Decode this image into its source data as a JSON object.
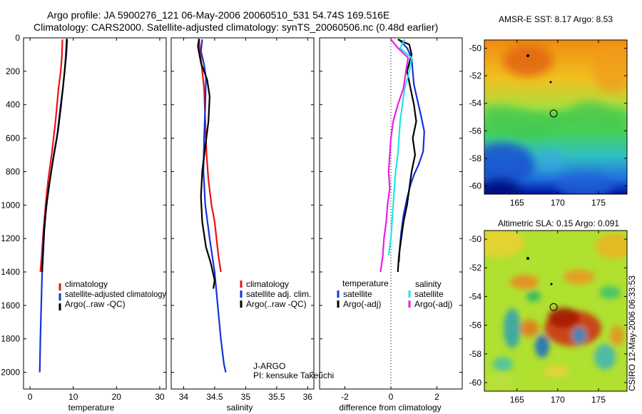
{
  "header": {
    "line1": "Argo profile: JA 5900276_121 06-May-2006 20060510_531 54.74S 169.516E",
    "line2": "Climatology: CARS2000. Satellite-adjusted climatology: synTS_20060506.nc (0.48d earlier)"
  },
  "colors": {
    "clim": "#ee1111",
    "sat": "#1133dd",
    "argo": "#000000",
    "cyan": "#22e5e5",
    "magenta": "#e81ee8"
  },
  "credit": "CSIRO 12-May-2006 06:33:53",
  "chart_data": [
    {
      "id": "temperature",
      "type": "line",
      "xlabel": "temperature",
      "ylabel": "",
      "xlim": [
        -1.5,
        31.5
      ],
      "ylim": [
        0,
        2100
      ],
      "yreverse": true,
      "xticks": [
        0,
        10,
        20,
        30
      ],
      "yticks": [
        0,
        200,
        400,
        600,
        800,
        1000,
        1200,
        1400,
        1600,
        1800,
        2000
      ],
      "legend": [
        "climatology",
        "satellite-adjusted climatology",
        "Argo(..raw -QC)"
      ],
      "series": [
        {
          "name": "climatology",
          "color": "clim",
          "x": [
            7.5,
            7.4,
            7.1,
            6.6,
            5.9,
            5.0,
            4.2,
            3.6,
            3.1,
            2.7,
            2.4
          ],
          "y": [
            10,
            100,
            200,
            300,
            500,
            700,
            850,
            1000,
            1150,
            1300,
            1400
          ]
        },
        {
          "name": "satellite-adjusted climatology",
          "color": "sat",
          "x": [
            8.6,
            8.4,
            8.0,
            7.6,
            7.1,
            6.2,
            5.2,
            4.3,
            3.6,
            3.1,
            2.8,
            2.6,
            2.4,
            2.25
          ],
          "y": [
            10,
            100,
            200,
            300,
            400,
            600,
            750,
            900,
            1050,
            1200,
            1400,
            1600,
            1800,
            2000
          ]
        },
        {
          "name": "Argo(..raw -QC)",
          "color": "argo",
          "x": [
            8.5,
            8.3,
            8.0,
            7.6,
            7.2,
            6.5,
            5.5,
            4.6,
            3.8,
            3.3,
            3.0,
            2.8
          ],
          "y": [
            5,
            100,
            200,
            300,
            400,
            550,
            700,
            850,
            1000,
            1150,
            1300,
            1400
          ]
        }
      ]
    },
    {
      "id": "salinity",
      "type": "line",
      "xlabel": "salinity",
      "ylabel": "",
      "xlim": [
        33.8,
        36.1
      ],
      "ylim": [
        0,
        2100
      ],
      "yreverse": true,
      "xticks": [
        34,
        34.5,
        35,
        35.5,
        36
      ],
      "legend": [
        "climatology",
        "satellite adj. clim.",
        "Argo(..raw -QC)"
      ],
      "annotation": [
        "J-ARGO",
        "PI: kensuke Takeuchi"
      ],
      "series": [
        {
          "name": "climatology",
          "color": "clim",
          "x": [
            34.25,
            34.27,
            34.3,
            34.33,
            34.35,
            34.37,
            34.4,
            34.45,
            34.5,
            34.53,
            34.56,
            34.6
          ],
          "y": [
            10,
            100,
            200,
            300,
            500,
            700,
            850,
            1000,
            1100,
            1200,
            1300,
            1400
          ]
        },
        {
          "name": "satellite adj. clim.",
          "color": "sat",
          "x": [
            34.3,
            34.28,
            34.33,
            34.36,
            34.35,
            34.33,
            34.32,
            34.35,
            34.42,
            34.5,
            34.55,
            34.6,
            34.65,
            34.68
          ],
          "y": [
            10,
            80,
            160,
            240,
            400,
            600,
            800,
            1000,
            1200,
            1400,
            1600,
            1800,
            1950,
            2000
          ]
        },
        {
          "name": "Argo(..raw -QC)",
          "color": "argo",
          "x": [
            34.25,
            34.23,
            34.28,
            34.38,
            34.42,
            34.4,
            34.35,
            34.3,
            34.28,
            34.3,
            34.36,
            34.44,
            34.5,
            34.48
          ],
          "y": [
            5,
            50,
            150,
            250,
            350,
            500,
            650,
            800,
            950,
            1100,
            1250,
            1350,
            1450,
            1500
          ]
        }
      ]
    },
    {
      "id": "difference",
      "type": "line",
      "xlabel": "difference from climatology",
      "ylabel": "",
      "xlim": [
        -3.1,
        3.1
      ],
      "ylim": [
        0,
        2100
      ],
      "yreverse": true,
      "xticks": [
        -2,
        0,
        2
      ],
      "legend": [
        "temperature",
        "satellite",
        "Argo(-adj)",
        "salinity",
        "satellite",
        "Argo(-adj)"
      ],
      "series": [
        {
          "name": "temperature satellite",
          "color": "sat",
          "x": [
            0.35,
            0.7,
            0.9,
            0.95,
            1.0,
            1.1,
            1.2,
            1.3,
            1.45,
            1.4,
            1.2,
            1.0,
            0.85,
            0.7,
            0.55,
            0.45,
            0.38,
            0.35
          ],
          "y": [
            10,
            60,
            120,
            200,
            280,
            340,
            400,
            460,
            560,
            680,
            760,
            820,
            880,
            960,
            1060,
            1160,
            1260,
            1340
          ]
        },
        {
          "name": "temperature Argo(-adj)",
          "color": "argo",
          "x": [
            0.3,
            0.8,
            0.9,
            0.7,
            0.85,
            1.0,
            1.1,
            0.95,
            1.05,
            0.9,
            0.8,
            0.7,
            0.55,
            0.45,
            0.35,
            0.3
          ],
          "y": [
            10,
            40,
            100,
            200,
            300,
            400,
            500,
            600,
            700,
            800,
            900,
            1000,
            1100,
            1200,
            1300,
            1400
          ]
        },
        {
          "name": "salinity satellite",
          "color": "cyan",
          "x": [
            0.6,
            0.4,
            0.9,
            0.8,
            0.6,
            0.5,
            0.4,
            0.35,
            0.3,
            0.2,
            0.15,
            0.1,
            0.05,
            0.0,
            -0.1
          ],
          "y": [
            10,
            60,
            120,
            200,
            300,
            400,
            500,
            600,
            700,
            800,
            900,
            1000,
            1100,
            1200,
            1300
          ]
        },
        {
          "name": "salinity Argo(-adj)",
          "color": "magenta",
          "x": [
            0.0,
            0.3,
            0.75,
            0.65,
            0.55,
            0.3,
            0.1,
            0.0,
            -0.05,
            -0.1,
            -0.05,
            -0.15,
            -0.2,
            -0.3,
            -0.35,
            -0.4,
            -0.45
          ],
          "y": [
            10,
            60,
            120,
            200,
            300,
            400,
            500,
            600,
            700,
            800,
            900,
            1000,
            1100,
            1200,
            1300,
            1350,
            1400
          ]
        }
      ]
    },
    {
      "id": "amsr-sst",
      "type": "heatmap",
      "title": "AMSR-E SST: 8.17 Argo: 8.53",
      "xlim": [
        161,
        178.5
      ],
      "ylim": [
        -60.6,
        -49.4
      ],
      "xticks": [
        165,
        170,
        175
      ],
      "yticks": [
        -50,
        -52,
        -54,
        -56,
        -58,
        -60
      ],
      "marker": {
        "lon": 169.5,
        "lat": -54.74
      }
    },
    {
      "id": "altimetric-sla",
      "type": "heatmap",
      "title": "Altimetric SLA: 0.15 Argo: 0.091",
      "xlim": [
        161,
        178.5
      ],
      "ylim": [
        -60.6,
        -49.4
      ],
      "xticks": [
        165,
        170,
        175
      ],
      "yticks": [
        -50,
        -52,
        -54,
        -56,
        -58,
        -60
      ],
      "marker": {
        "lon": 169.5,
        "lat": -54.74
      }
    }
  ]
}
